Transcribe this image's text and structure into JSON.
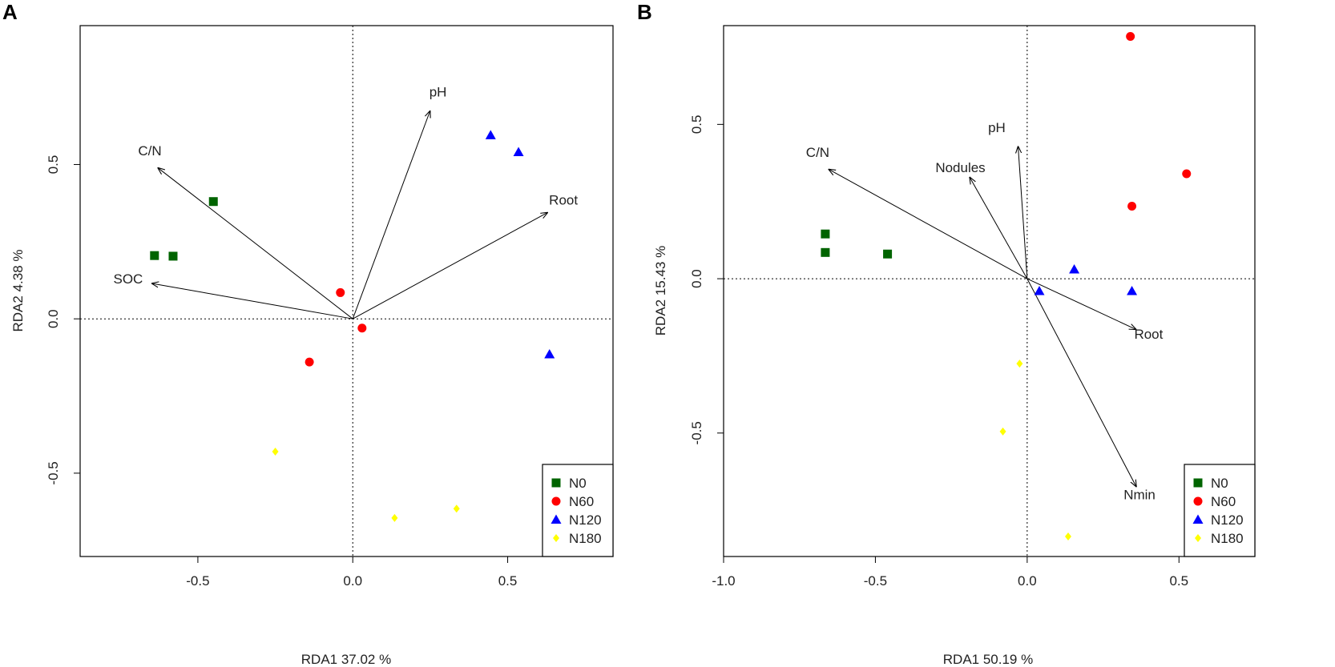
{
  "chart_data": [
    {
      "type": "scatter",
      "panel_label": "A",
      "xlabel": "RDA1 37.02 %",
      "ylabel": "RDA2 4.38 %",
      "xlim": [
        -0.88,
        0.84
      ],
      "ylim": [
        -0.77,
        0.95
      ],
      "xticks": [
        -0.5,
        0.0,
        0.5
      ],
      "xtick_labels": [
        "-0.5",
        "0.0",
        "0.5"
      ],
      "yticks": [
        -0.5,
        0.0,
        0.5
      ],
      "ytick_labels": [
        "-0.5",
        "0.0",
        "0.5"
      ],
      "reference_lines": {
        "x": 0,
        "y": 0,
        "style": "dotted"
      },
      "legend_position": "bottom-right",
      "series": [
        {
          "name": "N0",
          "label": "N0",
          "marker": "square",
          "color": "#006400",
          "points": [
            [
              -0.45,
              0.38
            ],
            [
              -0.64,
              0.205
            ],
            [
              -0.58,
              0.203
            ]
          ]
        },
        {
          "name": "N60",
          "label": "N60",
          "marker": "circle",
          "color": "#ff0000",
          "points": [
            [
              -0.04,
              0.085
            ],
            [
              0.03,
              -0.03
            ],
            [
              -0.14,
              -0.14
            ]
          ]
        },
        {
          "name": "N120",
          "label": "N120",
          "marker": "triangle",
          "color": "#0000ff",
          "points": [
            [
              0.445,
              0.595
            ],
            [
              0.535,
              0.54
            ],
            [
              0.635,
              -0.115
            ]
          ]
        },
        {
          "name": "N180",
          "label": "N180",
          "marker": "diamond",
          "color": "#ffff00",
          "points": [
            [
              -0.25,
              -0.43
            ],
            [
              0.135,
              -0.645
            ],
            [
              0.335,
              -0.615
            ]
          ]
        }
      ],
      "arrows": [
        {
          "label": "pH",
          "x": 0.25,
          "y": 0.675,
          "label_x": 0.275,
          "label_y": 0.72
        },
        {
          "label": "C/N",
          "x": -0.63,
          "y": 0.49,
          "label_x": -0.655,
          "label_y": 0.53
        },
        {
          "label": "Root",
          "x": 0.63,
          "y": 0.345,
          "label_x": 0.68,
          "label_y": 0.37
        },
        {
          "label": "SOC",
          "x": -0.65,
          "y": 0.115,
          "label_x": -0.725,
          "label_y": 0.115
        }
      ]
    },
    {
      "type": "scatter",
      "panel_label": "B",
      "xlabel": "RDA1 50.19 %",
      "ylabel": "RDA2 15.43 %",
      "xlim": [
        -1.0,
        0.75
      ],
      "ylim": [
        -0.9,
        0.82
      ],
      "xticks": [
        -1.0,
        -0.5,
        0.0,
        0.5
      ],
      "xtick_labels": [
        "-1.0",
        "-0.5",
        "0.0",
        "0.5"
      ],
      "yticks": [
        -0.5,
        0.0,
        0.5
      ],
      "ytick_labels": [
        "-0.5",
        "0.0",
        "0.5"
      ],
      "reference_lines": {
        "x": 0,
        "y": 0,
        "style": "dotted"
      },
      "legend_position": "bottom-right",
      "series": [
        {
          "name": "N0",
          "label": "N0",
          "marker": "square",
          "color": "#006400",
          "points": [
            [
              -0.665,
              0.145
            ],
            [
              -0.665,
              0.085
            ],
            [
              -0.46,
              0.08
            ]
          ]
        },
        {
          "name": "N60",
          "label": "N60",
          "marker": "circle",
          "color": "#ff0000",
          "points": [
            [
              0.34,
              0.785
            ],
            [
              0.525,
              0.34
            ],
            [
              0.345,
              0.235
            ]
          ]
        },
        {
          "name": "N120",
          "label": "N120",
          "marker": "triangle",
          "color": "#0000ff",
          "points": [
            [
              0.155,
              0.03
            ],
            [
              0.04,
              -0.04
            ],
            [
              0.345,
              -0.04
            ]
          ]
        },
        {
          "name": "N180",
          "label": "N180",
          "marker": "diamond",
          "color": "#ffff00",
          "points": [
            [
              -0.025,
              -0.275
            ],
            [
              -0.08,
              -0.495
            ],
            [
              0.135,
              -0.835
            ]
          ]
        }
      ],
      "arrows": [
        {
          "label": "pH",
          "x": -0.03,
          "y": 0.43,
          "label_x": -0.1,
          "label_y": 0.475
        },
        {
          "label": "C/N",
          "x": -0.655,
          "y": 0.355,
          "label_x": -0.69,
          "label_y": 0.395
        },
        {
          "label": "Nodules",
          "x": -0.19,
          "y": 0.33,
          "label_x": -0.22,
          "label_y": 0.345
        },
        {
          "label": "Root",
          "x": 0.36,
          "y": -0.165,
          "label_x": 0.4,
          "label_y": -0.195
        },
        {
          "label": "Nmin",
          "x": 0.36,
          "y": -0.675,
          "label_x": 0.37,
          "label_y": -0.715
        }
      ]
    }
  ]
}
